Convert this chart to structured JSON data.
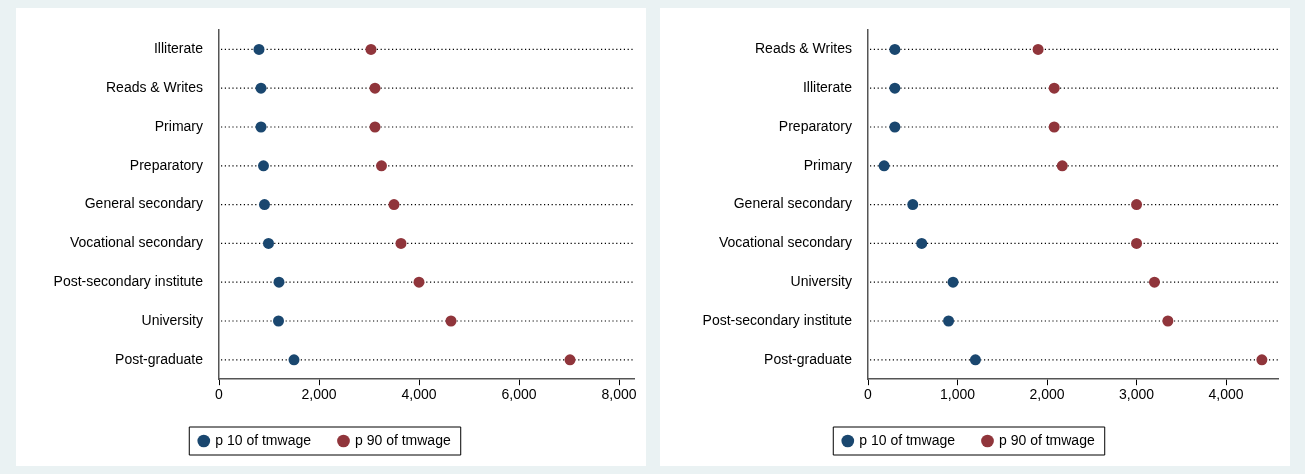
{
  "chart_data": [
    {
      "type": "scatter",
      "orientation": "horizontal",
      "categories": [
        "Illiterate",
        "Reads & Writes",
        "Primary",
        "Preparatory",
        "General secondary",
        "Vocational secondary",
        "Post-secondary institute",
        "University",
        "Post-graduate"
      ],
      "series": [
        {
          "name": "p 10 of tmwage",
          "color": "#1a476f",
          "values": [
            800,
            840,
            840,
            890,
            910,
            990,
            1200,
            1190,
            1500
          ]
        },
        {
          "name": "p 90 of tmwage",
          "color": "#90353b",
          "values": [
            3040,
            3120,
            3120,
            3250,
            3500,
            3640,
            4000,
            4640,
            7020
          ]
        }
      ],
      "xlim": [
        0,
        8300
      ],
      "xticks": [
        0,
        {
          "value": 2000,
          "label": "2,000"
        },
        {
          "value": 4000,
          "label": "4,000"
        },
        {
          "value": 6000,
          "label": "6,000"
        },
        {
          "value": 8000,
          "label": "8,000"
        }
      ],
      "grid": "y",
      "legend": "bottom",
      "marker": "circle"
    },
    {
      "type": "scatter",
      "orientation": "horizontal",
      "categories": [
        "Reads & Writes",
        "Illiterate",
        "Preparatory",
        "Primary",
        "General secondary",
        "Vocational secondary",
        "University",
        "Post-secondary institute",
        "Post-graduate"
      ],
      "series": [
        {
          "name": "p 10 of tmwage",
          "color": "#1a476f",
          "values": [
            300,
            300,
            300,
            180,
            500,
            600,
            950,
            900,
            1200
          ]
        },
        {
          "name": "p 90 of tmwage",
          "color": "#90353b",
          "values": [
            1900,
            2080,
            2080,
            2170,
            3000,
            3000,
            3200,
            3350,
            4400
          ]
        }
      ],
      "xlim": [
        0,
        4580
      ],
      "xticks": [
        0,
        {
          "value": 1000,
          "label": "1,000"
        },
        {
          "value": 2000,
          "label": "2,000"
        },
        {
          "value": 3000,
          "label": "3,000"
        },
        {
          "value": 4000,
          "label": "4,000"
        }
      ],
      "grid": "y",
      "legend": "bottom",
      "marker": "circle"
    }
  ]
}
